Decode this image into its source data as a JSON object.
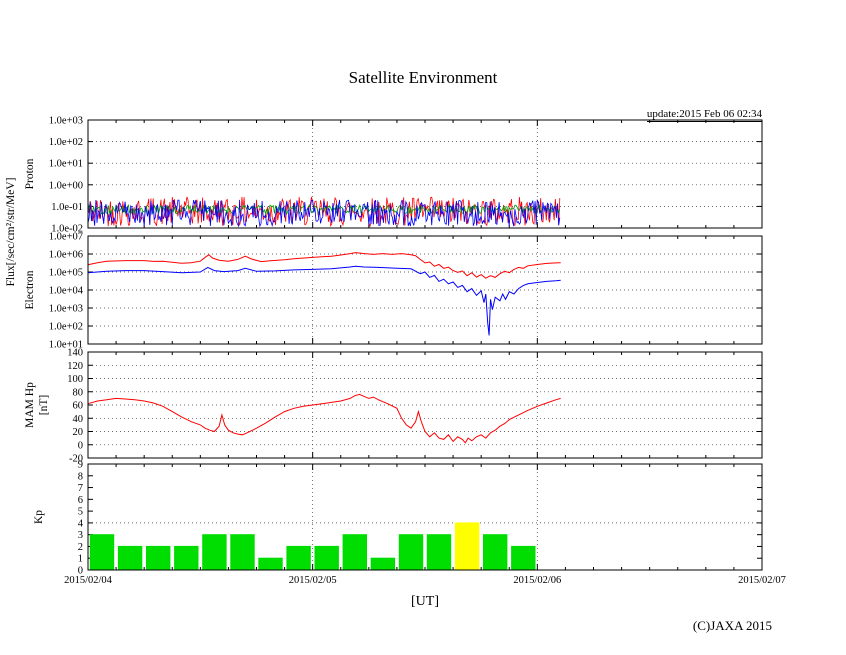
{
  "page": {
    "title": "Satellite Environment",
    "update": "update:2015 Feb 06 02:34",
    "xlabel": "[UT]",
    "copyright": "(C)JAXA 2015",
    "flux_label": "Flux[/sec/cm²/str/MeV]"
  },
  "colors": {
    "red": "#ff0000",
    "green": "#00a000",
    "blue": "#0000ff",
    "bar_green": "#00dd00",
    "bar_yellow": "#ffff00",
    "axis": "#000000"
  },
  "x_axis": {
    "tick_labels": [
      "2015/02/04",
      "2015/02/05",
      "2015/02/06",
      "2015/02/07"
    ],
    "tick_hours": [
      0,
      24,
      48,
      72
    ],
    "hours_span": 72,
    "minor_tick_step_hours": 3,
    "day_grid_hours": [
      24,
      48
    ]
  },
  "chart_data": [
    {
      "id": "proton",
      "type": "line",
      "ylabel": "Proton",
      "yscale": "log",
      "ylim": [
        0.01,
        1000
      ],
      "ytick_values": [
        1000,
        100,
        10,
        1,
        0.1,
        0.01
      ],
      "ytick_labels": [
        "1.0e+03",
        "1.0e+02",
        "1.0e+01",
        "1.0e+00",
        "1.0e-01",
        "1.0e-02"
      ],
      "grid_values": [
        100,
        10,
        1,
        0.1
      ],
      "data_end_hour": 50.4,
      "noise_seed": 42,
      "noise_series": [
        {
          "name": "red-trace",
          "color": "#ff0000",
          "min": 0.012,
          "max": 0.28
        },
        {
          "name": "green-trace",
          "color": "#00a000",
          "min": 0.045,
          "max": 0.115
        },
        {
          "name": "blue-trace",
          "color": "#0000ff",
          "min": 0.012,
          "max": 0.2
        }
      ]
    },
    {
      "id": "electron",
      "type": "line",
      "ylabel": "Electron",
      "yscale": "log",
      "ylim": [
        10,
        10000000
      ],
      "ytick_values": [
        10000000,
        1000000,
        100000,
        10000,
        1000,
        100,
        10
      ],
      "ytick_labels": [
        "1.0e+07",
        "1.0e+06",
        "1.0e+05",
        "1.0e+04",
        "1.0e+03",
        "1.0e+02",
        "1.0e+01"
      ],
      "grid_values": [
        1000000,
        100000,
        10000,
        1000,
        100
      ],
      "series": [
        {
          "name": "red-trace",
          "color": "#ff0000",
          "points": [
            [
              0,
              250000
            ],
            [
              1,
              330000
            ],
            [
              2,
              400000
            ],
            [
              4,
              430000
            ],
            [
              6,
              430000
            ],
            [
              7,
              390000
            ],
            [
              8,
              400000
            ],
            [
              10,
              310000
            ],
            [
              11,
              330000
            ],
            [
              12,
              400000
            ],
            [
              12.6,
              700000
            ],
            [
              12.9,
              900000
            ],
            [
              13.3,
              600000
            ],
            [
              14,
              450000
            ],
            [
              15,
              400000
            ],
            [
              16,
              500000
            ],
            [
              16.8,
              750000
            ],
            [
              17.5,
              520000
            ],
            [
              18.5,
              380000
            ],
            [
              19.5,
              420000
            ],
            [
              21,
              480000
            ],
            [
              22,
              550000
            ],
            [
              24,
              650000
            ],
            [
              25,
              700000
            ],
            [
              26,
              750000
            ],
            [
              27,
              880000
            ],
            [
              28,
              1050000
            ],
            [
              28.6,
              1200000
            ],
            [
              29.5,
              1050000
            ],
            [
              30.5,
              950000
            ],
            [
              31.5,
              1050000
            ],
            [
              32.5,
              950000
            ],
            [
              33.5,
              1050000
            ],
            [
              34.5,
              900000
            ],
            [
              35,
              800000
            ],
            [
              35.5,
              500000
            ],
            [
              36,
              320000
            ],
            [
              36.5,
              360000
            ],
            [
              37,
              210000
            ],
            [
              37.5,
              260000
            ],
            [
              38,
              160000
            ],
            [
              38.5,
              185000
            ],
            [
              39,
              120000
            ],
            [
              39.5,
              95000
            ],
            [
              40,
              115000
            ],
            [
              40.5,
              62000
            ],
            [
              41,
              92000
            ],
            [
              41.5,
              52000
            ],
            [
              42,
              72000
            ],
            [
              42.5,
              45000
            ],
            [
              43,
              62000
            ],
            [
              43.5,
              50000
            ],
            [
              44,
              80000
            ],
            [
              44.5,
              110000
            ],
            [
              45,
              92000
            ],
            [
              45.5,
              140000
            ],
            [
              46,
              180000
            ],
            [
              46.5,
              160000
            ],
            [
              47,
              220000
            ],
            [
              48,
              260000
            ],
            [
              49,
              300000
            ],
            [
              50,
              320000
            ],
            [
              50.5,
              330000
            ]
          ]
        },
        {
          "name": "blue-trace",
          "color": "#0000ff",
          "points": [
            [
              0,
              90000
            ],
            [
              2,
              110000
            ],
            [
              4,
              120000
            ],
            [
              6,
              120000
            ],
            [
              8,
              105000
            ],
            [
              10,
              90000
            ],
            [
              12,
              100000
            ],
            [
              12.8,
              180000
            ],
            [
              13.5,
              120000
            ],
            [
              14.5,
              105000
            ],
            [
              16,
              120000
            ],
            [
              16.8,
              160000
            ],
            [
              18,
              110000
            ],
            [
              20,
              115000
            ],
            [
              22,
              130000
            ],
            [
              24,
              140000
            ],
            [
              26,
              150000
            ],
            [
              28,
              190000
            ],
            [
              28.6,
              210000
            ],
            [
              29.5,
              190000
            ],
            [
              31,
              180000
            ],
            [
              33,
              160000
            ],
            [
              34.5,
              150000
            ],
            [
              35.5,
              80000
            ],
            [
              36,
              100000
            ],
            [
              36.5,
              50000
            ],
            [
              37,
              65000
            ],
            [
              37.5,
              30000
            ],
            [
              38,
              40000
            ],
            [
              38.5,
              22000
            ],
            [
              39,
              28000
            ],
            [
              39.5,
              14000
            ],
            [
              40,
              18000
            ],
            [
              40.5,
              8000
            ],
            [
              41,
              12000
            ],
            [
              41.5,
              5000
            ],
            [
              42,
              9000
            ],
            [
              42.3,
              2000
            ],
            [
              42.5,
              6000
            ],
            [
              42.7,
              150
            ],
            [
              42.85,
              30
            ],
            [
              43,
              3000
            ],
            [
              43.2,
              800
            ],
            [
              43.5,
              4000
            ],
            [
              44,
              2500
            ],
            [
              44.3,
              6000
            ],
            [
              44.6,
              3000
            ],
            [
              45,
              8000
            ],
            [
              45.5,
              6000
            ],
            [
              46,
              12000
            ],
            [
              46.5,
              18000
            ],
            [
              47,
              22000
            ],
            [
              48,
              26000
            ],
            [
              49,
              30000
            ],
            [
              50,
              33000
            ],
            [
              50.5,
              35000
            ]
          ]
        }
      ]
    },
    {
      "id": "mam-hp",
      "type": "line",
      "ylabel": "MAM Hp",
      "ylabel2": "[nT]",
      "yscale": "linear",
      "ylim": [
        -20,
        140
      ],
      "ytick_values": [
        140,
        120,
        100,
        80,
        60,
        40,
        20,
        0,
        -20
      ],
      "ytick_labels": [
        "140",
        "120",
        "100",
        "80",
        "60",
        "40",
        "20",
        "0",
        "-20"
      ],
      "grid_values": [
        120,
        100,
        80,
        60,
        40,
        20,
        0
      ],
      "series": [
        {
          "name": "hp-trace",
          "color": "#ff0000",
          "points": [
            [
              0,
              62
            ],
            [
              1,
              66
            ],
            [
              2,
              68
            ],
            [
              3,
              70
            ],
            [
              4,
              69
            ],
            [
              5,
              68
            ],
            [
              6,
              66
            ],
            [
              7,
              63
            ],
            [
              8,
              58
            ],
            [
              9,
              50
            ],
            [
              10,
              42
            ],
            [
              11,
              35
            ],
            [
              12,
              30
            ],
            [
              12.5,
              25
            ],
            [
              13,
              22
            ],
            [
              13.5,
              20
            ],
            [
              14,
              28
            ],
            [
              14.3,
              45
            ],
            [
              14.6,
              30
            ],
            [
              15,
              22
            ],
            [
              15.5,
              18
            ],
            [
              16,
              16
            ],
            [
              16.5,
              15
            ],
            [
              17,
              18
            ],
            [
              18,
              25
            ],
            [
              19,
              33
            ],
            [
              20,
              42
            ],
            [
              21,
              50
            ],
            [
              22,
              55
            ],
            [
              23,
              58
            ],
            [
              24,
              60
            ],
            [
              25,
              62
            ],
            [
              26,
              64
            ],
            [
              27,
              66
            ],
            [
              28,
              70
            ],
            [
              28.5,
              74
            ],
            [
              29,
              76
            ],
            [
              29.5,
              73
            ],
            [
              30,
              70
            ],
            [
              30.5,
              72
            ],
            [
              31,
              68
            ],
            [
              32,
              62
            ],
            [
              33,
              55
            ],
            [
              33.5,
              40
            ],
            [
              34,
              30
            ],
            [
              34.5,
              25
            ],
            [
              35,
              35
            ],
            [
              35.3,
              50
            ],
            [
              35.6,
              35
            ],
            [
              36,
              20
            ],
            [
              36.5,
              12
            ],
            [
              37,
              18
            ],
            [
              37.5,
              10
            ],
            [
              38,
              8
            ],
            [
              38.5,
              15
            ],
            [
              39,
              5
            ],
            [
              39.5,
              12
            ],
            [
              40,
              8
            ],
            [
              40.3,
              3
            ],
            [
              40.6,
              10
            ],
            [
              41,
              6
            ],
            [
              41.5,
              12
            ],
            [
              42,
              15
            ],
            [
              42.5,
              10
            ],
            [
              43,
              18
            ],
            [
              43.5,
              22
            ],
            [
              44,
              28
            ],
            [
              44.5,
              32
            ],
            [
              45,
              38
            ],
            [
              46,
              45
            ],
            [
              47,
              52
            ],
            [
              48,
              58
            ],
            [
              49,
              63
            ],
            [
              50,
              68
            ],
            [
              50.5,
              70
            ]
          ]
        }
      ]
    },
    {
      "id": "kp",
      "type": "bar",
      "ylabel": "Kp",
      "yscale": "linear",
      "ylim": [
        0,
        9
      ],
      "ytick_values": [
        9,
        8,
        7,
        6,
        5,
        4,
        3,
        2,
        1,
        0
      ],
      "ytick_labels": [
        "9",
        "8",
        "7",
        "6",
        "5",
        "4",
        "3",
        "2",
        "1",
        "0"
      ],
      "grid_values": [
        4
      ],
      "bar_width_hours": 3,
      "bars": [
        {
          "start_hour": 0,
          "value": 3,
          "color": "#00dd00"
        },
        {
          "start_hour": 3,
          "value": 2,
          "color": "#00dd00"
        },
        {
          "start_hour": 6,
          "value": 2,
          "color": "#00dd00"
        },
        {
          "start_hour": 9,
          "value": 2,
          "color": "#00dd00"
        },
        {
          "start_hour": 12,
          "value": 3,
          "color": "#00dd00"
        },
        {
          "start_hour": 15,
          "value": 3,
          "color": "#00dd00"
        },
        {
          "start_hour": 18,
          "value": 1,
          "color": "#00dd00"
        },
        {
          "start_hour": 21,
          "value": 2,
          "color": "#00dd00"
        },
        {
          "start_hour": 24,
          "value": 2,
          "color": "#00dd00"
        },
        {
          "start_hour": 27,
          "value": 3,
          "color": "#00dd00"
        },
        {
          "start_hour": 30,
          "value": 1,
          "color": "#00dd00"
        },
        {
          "start_hour": 33,
          "value": 3,
          "color": "#00dd00"
        },
        {
          "start_hour": 36,
          "value": 3,
          "color": "#00dd00"
        },
        {
          "start_hour": 39,
          "value": 4,
          "color": "#ffff00"
        },
        {
          "start_hour": 42,
          "value": 3,
          "color": "#00dd00"
        },
        {
          "start_hour": 45,
          "value": 2,
          "color": "#00dd00"
        }
      ]
    }
  ]
}
